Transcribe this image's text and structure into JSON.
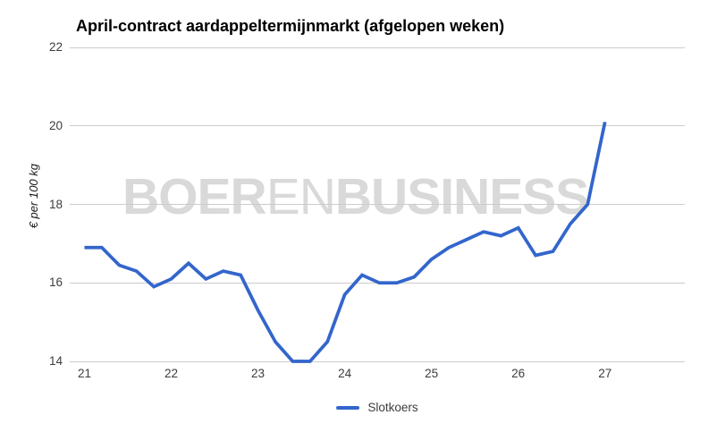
{
  "chart_data": {
    "type": "line",
    "title": "April-contract aardappeltermijnmarkt (afgelopen weken)",
    "xlabel": "",
    "ylabel": "€ per 100 kg",
    "x": [
      21.0,
      21.2,
      21.4,
      21.6,
      21.8,
      22.0,
      22.2,
      22.4,
      22.6,
      22.8,
      23.0,
      23.2,
      23.4,
      23.6,
      23.8,
      24.0,
      24.2,
      24.4,
      24.6,
      24.8,
      25.0,
      25.2,
      25.4,
      25.6,
      25.8,
      26.0,
      26.2,
      26.4,
      26.6,
      26.8,
      27.0
    ],
    "series": [
      {
        "name": "Slotkoers",
        "color": "#3366cc",
        "values": [
          16.9,
          16.9,
          16.45,
          16.3,
          15.9,
          16.1,
          16.5,
          16.1,
          16.3,
          16.2,
          15.3,
          14.5,
          14.0,
          14.0,
          14.5,
          15.7,
          16.2,
          16.0,
          16.0,
          16.15,
          16.6,
          16.9,
          17.1,
          17.3,
          17.2,
          17.4,
          16.7,
          16.8,
          17.5,
          18.0,
          20.1
        ]
      }
    ],
    "x_ticks": [
      21,
      22,
      23,
      24,
      25,
      26,
      27
    ],
    "y_ticks": [
      14,
      16,
      18,
      20,
      22
    ],
    "xlim": [
      20.83,
      27.92
    ],
    "ylim": [
      14,
      22
    ],
    "grid": "horizontal",
    "legend_position": "bottom-center",
    "colors": {
      "line": "#3366cc",
      "gridline": "#cccccc",
      "tick_label": "#3c3c3c",
      "title": "#000000",
      "watermark": "#d9d9d9",
      "background": "#ffffff"
    }
  },
  "watermark": {
    "text": "BOERENBUSINESS",
    "segments": [
      {
        "text": "BOER"
      },
      {
        "text": "EN"
      },
      {
        "text": "BUSINESS"
      }
    ]
  },
  "legend": {
    "label": "Slotkoers"
  }
}
